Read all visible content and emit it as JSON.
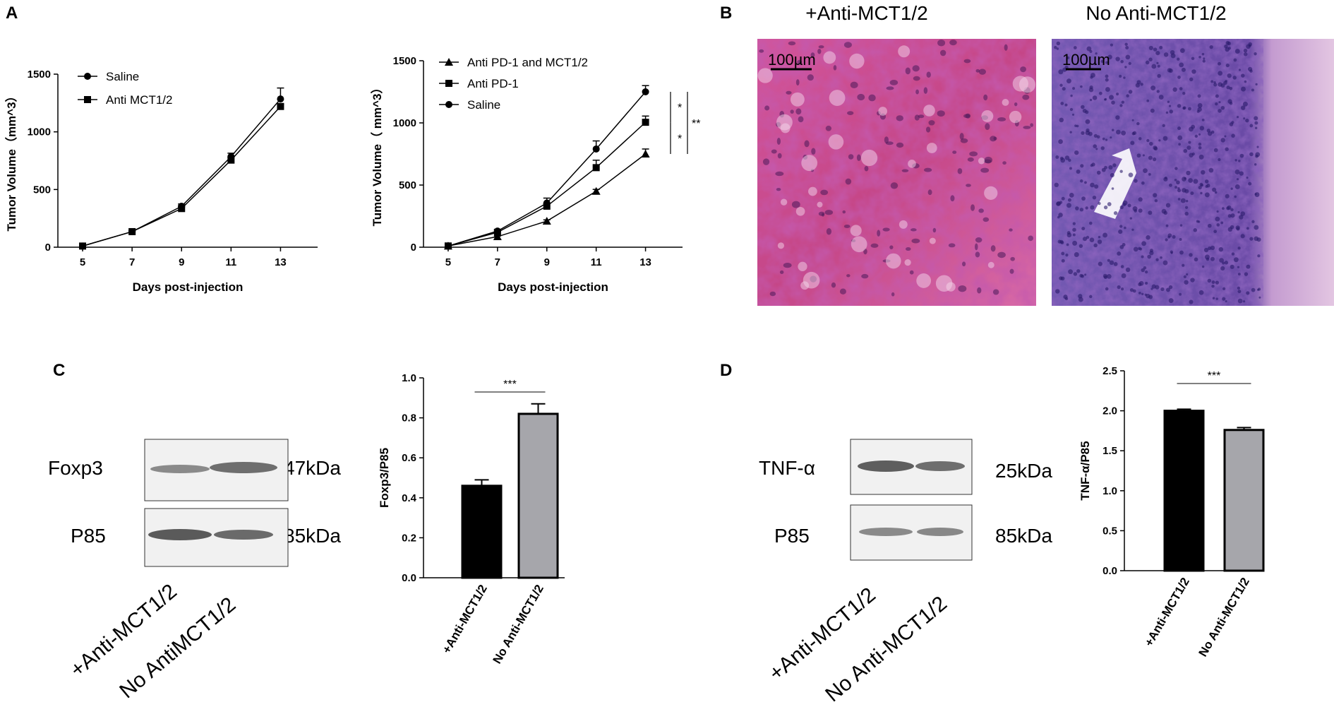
{
  "panels": {
    "A": "A",
    "B": "B",
    "C": "C",
    "D": "D"
  },
  "chart_data": [
    {
      "type": "line",
      "panel": "A",
      "x": [
        5,
        7,
        9,
        11,
        13
      ],
      "xlabel": "Days post-injection",
      "ylabel": "Tumor Volume（mm^3）",
      "xticks": [
        "5",
        "7",
        "9",
        "11",
        "13"
      ],
      "yticks": [
        "0",
        "500",
        "1000",
        "1500"
      ],
      "ylim": [
        0,
        1500
      ],
      "legend": "top-left",
      "series": [
        {
          "name": "Saline",
          "marker": "circle",
          "values": [
            10,
            135,
            355,
            785,
            1285
          ],
          "errors": [
            0,
            8,
            20,
            30,
            95
          ]
        },
        {
          "name": "Anti MCT1/2",
          "marker": "square",
          "values": [
            10,
            135,
            335,
            755,
            1220
          ],
          "errors": [
            0,
            8,
            15,
            25,
            20
          ]
        }
      ]
    },
    {
      "type": "line",
      "panel": "A",
      "x": [
        5,
        7,
        9,
        11,
        13
      ],
      "xlabel": "Days post-injection",
      "ylabel": "Tumor Volume（ mm^3）",
      "xticks": [
        "5",
        "7",
        "9",
        "11",
        "13"
      ],
      "yticks": [
        "0",
        "500",
        "1000",
        "1500"
      ],
      "ylim": [
        0,
        1500
      ],
      "legend": "top-left",
      "series": [
        {
          "name": "Anti PD-1 and MCT1/2",
          "marker": "triangle",
          "values": [
            10,
            85,
            210,
            450,
            750
          ],
          "errors": [
            0,
            5,
            10,
            15,
            40
          ]
        },
        {
          "name": "Anti PD-1",
          "marker": "square",
          "values": [
            10,
            120,
            330,
            640,
            1005
          ],
          "errors": [
            0,
            8,
            20,
            60,
            50
          ]
        },
        {
          "name": "Saline",
          "marker": "circle",
          "values": [
            10,
            130,
            355,
            790,
            1250
          ],
          "errors": [
            0,
            10,
            40,
            65,
            50
          ]
        }
      ],
      "significance": [
        "*",
        "*",
        "**"
      ]
    },
    {
      "type": "bar",
      "panel": "C",
      "categories": [
        "+Anti-MCT1/2",
        "No Anti-MCT1/2"
      ],
      "values": [
        0.46,
        0.82
      ],
      "errors": [
        0.03,
        0.05
      ],
      "colors": [
        "#000000",
        "#a6a6ab"
      ],
      "ylabel": "Foxp3/P85",
      "yticks": [
        "0.0",
        "0.2",
        "0.4",
        "0.6",
        "0.8",
        "1.0"
      ],
      "ylim": [
        0,
        1.0
      ],
      "significance": "***"
    },
    {
      "type": "bar",
      "panel": "D",
      "categories": [
        "+Anti-MCT1/2",
        "No Anti-MCT1/2"
      ],
      "values": [
        2.0,
        1.76
      ],
      "errors": [
        0.02,
        0.03
      ],
      "colors": [
        "#000000",
        "#a6a6ab"
      ],
      "ylabel": "TNF-α/P85",
      "yticks": [
        "0.0",
        "0.5",
        "1.0",
        "1.5",
        "2.0",
        "2.5"
      ],
      "ylim": [
        0,
        2.5
      ],
      "significance": "***"
    }
  ],
  "micrographs": {
    "left_title": "+Anti-MCT1/2",
    "right_title": "No Anti-MCT1/2",
    "scale_left": "100µm",
    "scale_right": "100µm"
  },
  "blot_c": {
    "band1": "Foxp3",
    "band1_kda": "47kDa",
    "band2": "P85",
    "band2_kda": "85kDa",
    "lane1": "+Anti-MCT1/2",
    "lane2": "No AntiMCT1/2"
  },
  "blot_d": {
    "band1": "TNF-α",
    "band1_kda": "25kDa",
    "band2": "P85",
    "band2_kda": "85kDa",
    "lane1": "+Anti-MCT1/2",
    "lane2": "No Anti-MCT1/2"
  },
  "colors": {
    "he_left": "#c94a8c",
    "he_right": "#6a4aa6",
    "bar_dark": "#000000",
    "bar_gray": "#a6a6ab"
  }
}
